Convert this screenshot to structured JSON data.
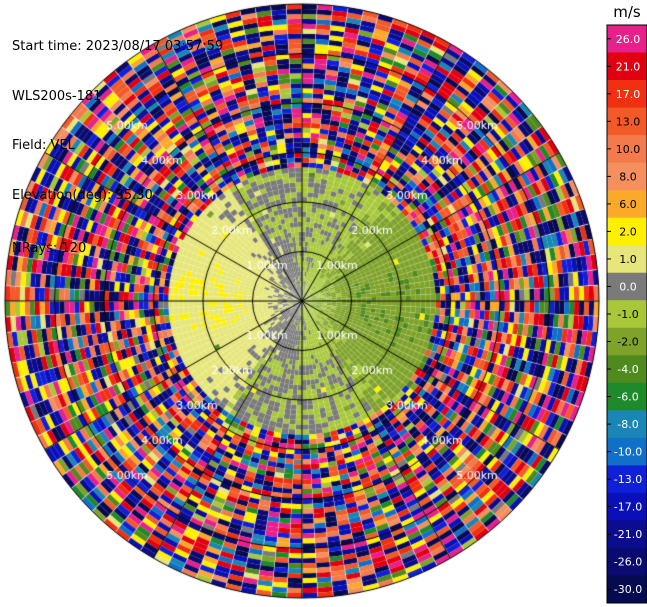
{
  "header": {
    "start_time": "Start time: 2023/08/17 03:57:59",
    "instrument": "WLS200s-181",
    "field": "Field: VEL",
    "elevation": "Elevation(deg): 35.30",
    "nrays": "NRays: 120"
  },
  "colorbar": {
    "unit": "m/s",
    "entries": [
      {
        "label": "26.0",
        "color": "#e8208a"
      },
      {
        "label": "21.0",
        "color": "#e00012"
      },
      {
        "label": "17.0",
        "color": "#f03010"
      },
      {
        "label": "13.0",
        "color": "#f25a28"
      },
      {
        "label": "10.0",
        "color": "#f47a4c"
      },
      {
        "label": "8.0",
        "color": "#f58f5e"
      },
      {
        "label": "6.0",
        "color": "#fba92a"
      },
      {
        "label": "2.0",
        "color": "#fff000"
      },
      {
        "label": "1.0",
        "color": "#e6e67a"
      },
      {
        "label": "0.0",
        "color": "#7a7a7a"
      },
      {
        "label": "-1.0",
        "color": "#a8c83a"
      },
      {
        "label": "-2.0",
        "color": "#7fa32a"
      },
      {
        "label": "-4.0",
        "color": "#4f8a1e"
      },
      {
        "label": "-6.0",
        "color": "#1f8a2a"
      },
      {
        "label": "-8.0",
        "color": "#1a86b5"
      },
      {
        "label": "-10.0",
        "color": "#1070c8"
      },
      {
        "label": "-13.0",
        "color": "#1020d8"
      },
      {
        "label": "-17.0",
        "color": "#0a10b8"
      },
      {
        "label": "-21.0",
        "color": "#0c0c90"
      },
      {
        "label": "-26.0",
        "color": "#0a0a70"
      },
      {
        "label": "-30.0",
        "color": "#060a50"
      }
    ]
  },
  "chart_data": {
    "type": "heatmap",
    "projection": "polar PPI",
    "field": "VEL",
    "nrays": 120,
    "range_rings_km": [
      1.0,
      2.0,
      3.0,
      4.0,
      5.0
    ],
    "ring_label_text": [
      "1.00km",
      "2.00km",
      "3.00km",
      "4.00km",
      "5.00km"
    ],
    "max_range_km": 6.0,
    "gate_spacing_km": 0.1,
    "clean_region_max_km": 2.7,
    "pattern": {
      "description": "approaching (green, negative) flow to the east near center; receding (yellow, positive) to the west; noise beyond about 2.7 km",
      "positive_azimuth_deg": 270,
      "negative_azimuth_deg": 90,
      "speed_amplitude_ms": 1.8
    },
    "colormap_bounds": [
      -30,
      -26,
      -21,
      -17,
      -13,
      -10,
      -8,
      -6,
      -4,
      -2,
      -1,
      0,
      1,
      2,
      6,
      8,
      10,
      13,
      17,
      21,
      26
    ],
    "colormap_colors": [
      "#060a50",
      "#0a0a70",
      "#0c0c90",
      "#0a10b8",
      "#1020d8",
      "#1070c8",
      "#1a86b5",
      "#1f8a2a",
      "#4f8a1e",
      "#7fa32a",
      "#a8c83a",
      "#7a7a7a",
      "#e6e67a",
      "#fff000",
      "#fba92a",
      "#f58f5e",
      "#f47a4c",
      "#f25a28",
      "#f03010",
      "#e00012",
      "#e8208a"
    ],
    "vmin": -30,
    "vmax": 30,
    "colorbar_unit": "m/s"
  }
}
